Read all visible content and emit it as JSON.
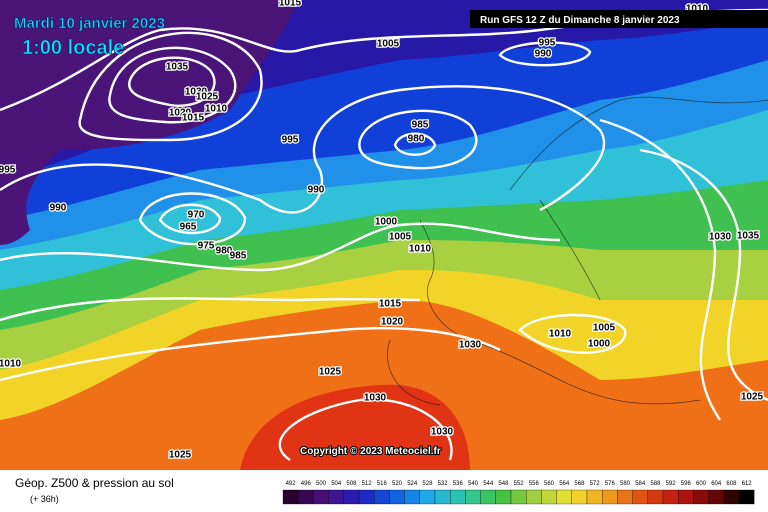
{
  "header": {
    "date": "Mardi 10 janvier 2023",
    "time": "1:00 locale",
    "run": "Run GFS 12 Z du Dimanche 8 janvier 2023",
    "copyright": "Copyright © 2023 Meteociel.fr"
  },
  "isobar_labels": [
    "1015",
    "1010",
    "1005",
    "995",
    "990",
    "1035",
    "1030",
    "1025",
    "1020",
    "1015",
    "1010",
    "985",
    "980",
    "995",
    "995",
    "990",
    "990",
    "970",
    "965",
    "975",
    "980",
    "985",
    "1000",
    "1005",
    "1010",
    "1015",
    "1020",
    "1025",
    "1030",
    "1030",
    "1030",
    "1010",
    "1005",
    "1000",
    "1010",
    "1025",
    "1025",
    "1030",
    "1035"
  ],
  "legend": {
    "title": "Géop. Z500 & pression au sol",
    "lead": "(+ 36h)",
    "scale": [
      492,
      496,
      500,
      504,
      508,
      512,
      516,
      520,
      524,
      528,
      532,
      536,
      540,
      544,
      548,
      552,
      556,
      560,
      564,
      568,
      572,
      576,
      580,
      584,
      588,
      592,
      596,
      600,
      604,
      608,
      612
    ]
  }
}
